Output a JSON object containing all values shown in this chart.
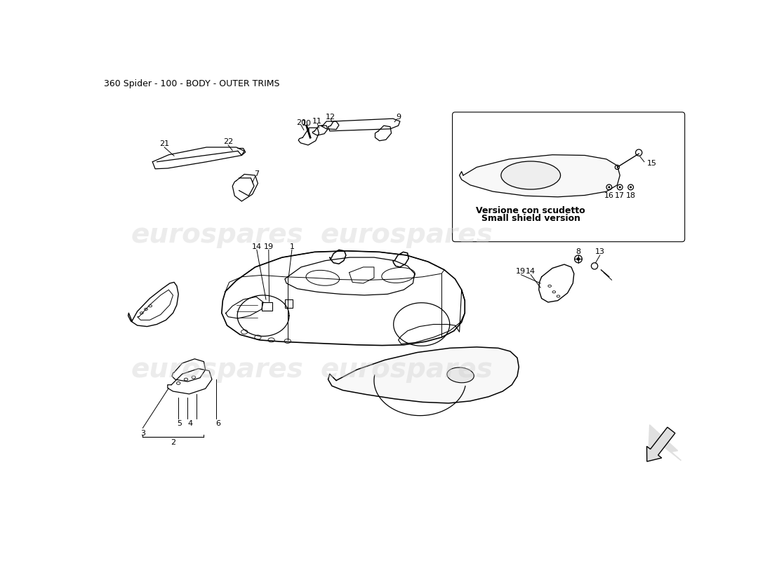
{
  "title": "360 Spider - 100 - BODY - OUTER TRIMS",
  "title_fontsize": 9,
  "background_color": "#ffffff",
  "watermark_text": "eurospares",
  "watermark_color": "#d0d0d0",
  "watermark_alpha": 0.4,
  "shield_text1": "Versione con scudetto",
  "shield_text2": "Small shield version",
  "lw": 0.9
}
